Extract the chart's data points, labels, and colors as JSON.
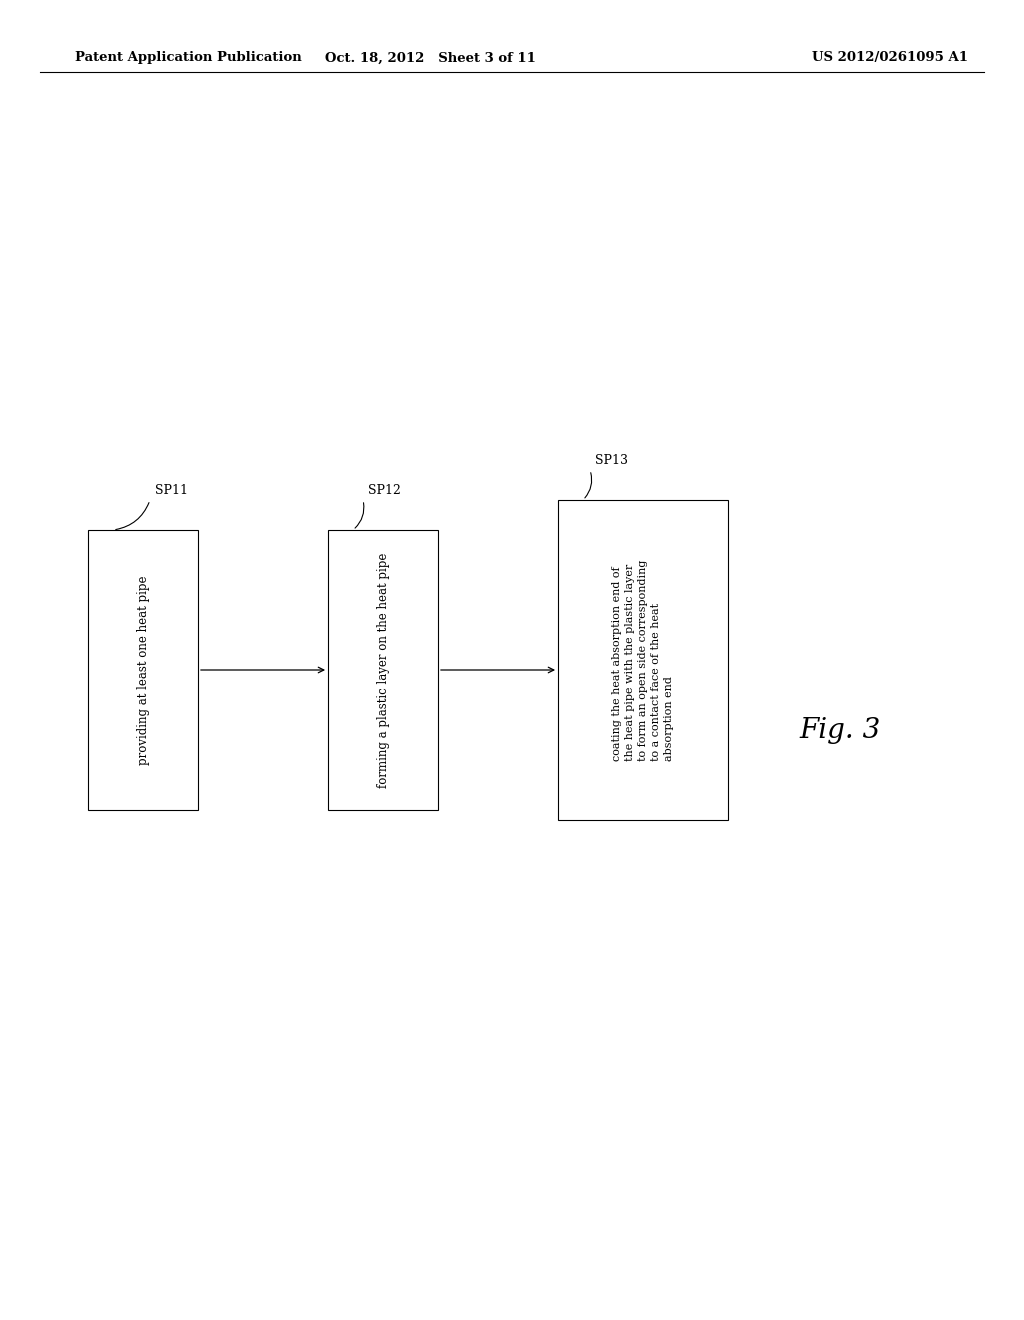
{
  "background_color": "#ffffff",
  "header_left": "Patent Application Publication",
  "header_center": "Oct. 18, 2012   Sheet 3 of 11",
  "header_right": "US 2012/0261095 A1",
  "fig_label": "Fig. 3",
  "box1_text": "providing at least one heat pipe",
  "box2_text": "forming a plastic layer on the heat pipe",
  "box3_text": "coating the heat absorption end of\nthe heat pipe with the plastic layer\nto form an open side corresponding\nto a contact face of the heat\nabsorption end",
  "label1": "SP11",
  "label2": "SP12",
  "label3": "SP13"
}
